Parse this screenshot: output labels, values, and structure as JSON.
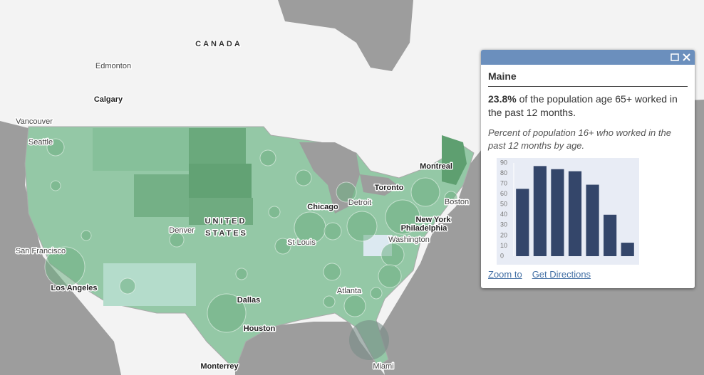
{
  "map_labels": [
    "CANADA",
    "Edmonton",
    "Calgary",
    "Vancouver",
    "Seattle",
    "Montreal",
    "Toronto",
    "Detroit",
    "Chicago",
    "Boston",
    "New York",
    "Philadelphia",
    "Washington",
    "St Louis",
    "Denver",
    "UNITED",
    "STATES",
    "San Francisco",
    "Los Angeles",
    "Dallas",
    "Houston",
    "Atlanta",
    "Miami",
    "Monterrey"
  ],
  "popup": {
    "title": "Maine",
    "highlight": "23.8%",
    "text": "of the population age 65+ worked in the past 12 months.",
    "description": "Percent of population 16+ who worked in the past 12 months by age.",
    "links": [
      "Zoom to",
      "Get Directions"
    ]
  },
  "chart_data": {
    "type": "bar",
    "categories": [
      null,
      null,
      null,
      null,
      null,
      null,
      null
    ],
    "values": [
      65,
      87,
      84,
      82,
      69,
      40,
      13
    ],
    "color": "#34466a",
    "ylim": [
      0,
      90
    ],
    "yticks": [
      0,
      10,
      20,
      30,
      40,
      50,
      60,
      70,
      80,
      90
    ],
    "grid": false
  }
}
